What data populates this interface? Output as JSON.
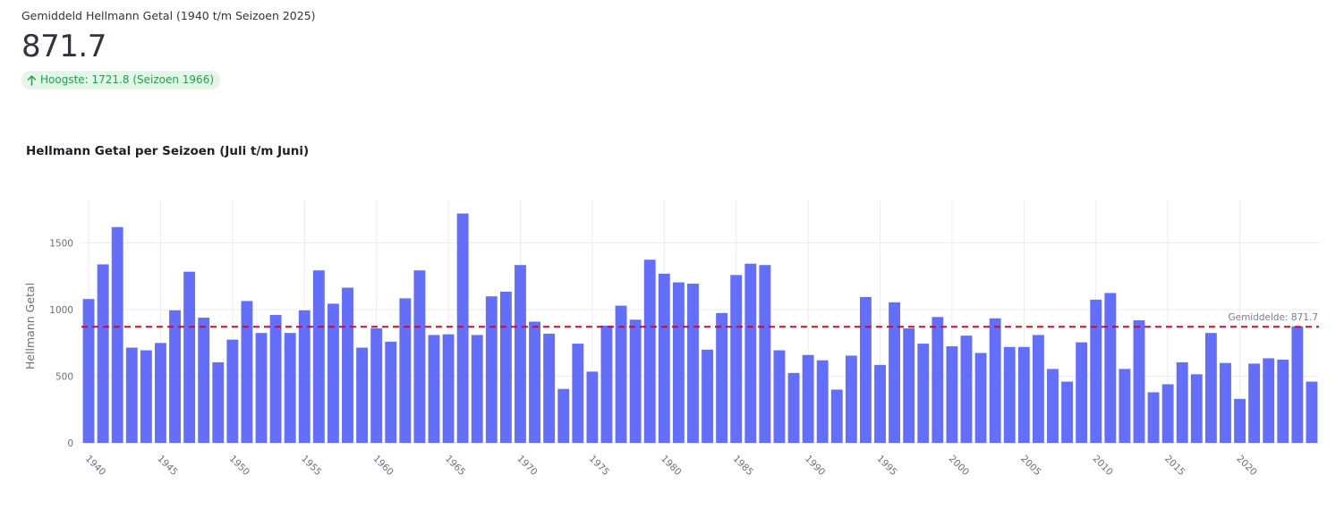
{
  "metric": {
    "label": "Gemiddeld Hellmann Getal (1940 t/m Seizoen 2025)",
    "value": "871.7",
    "delta": "Hoogste: 1721.8 (Seizoen 1966)"
  },
  "colors": {
    "bar": "#636efa",
    "mean_line": "#e8001c",
    "delta_bg": "#e3f6e9",
    "delta_text": "#21a047",
    "grid": "#ebecf0"
  },
  "chart_data": {
    "type": "bar",
    "title": "Hellmann Getal per Seizoen (Juli t/m Juni)",
    "xlabel": "",
    "ylabel": "Hellmann Getal",
    "xlim": [
      1939.5,
      2025.5
    ],
    "ylim": [
      0,
      1820
    ],
    "grid": true,
    "x": [
      1940,
      1941,
      1942,
      1943,
      1944,
      1945,
      1946,
      1947,
      1948,
      1949,
      1950,
      1951,
      1952,
      1953,
      1954,
      1955,
      1956,
      1957,
      1958,
      1959,
      1960,
      1961,
      1962,
      1963,
      1964,
      1965,
      1966,
      1967,
      1968,
      1969,
      1970,
      1971,
      1972,
      1973,
      1974,
      1975,
      1976,
      1977,
      1978,
      1979,
      1980,
      1981,
      1982,
      1983,
      1984,
      1985,
      1986,
      1987,
      1988,
      1989,
      1990,
      1991,
      1992,
      1993,
      1994,
      1995,
      1996,
      1997,
      1998,
      1999,
      2000,
      2001,
      2002,
      2003,
      2004,
      2005,
      2006,
      2007,
      2008,
      2009,
      2010,
      2011,
      2012,
      2013,
      2014,
      2015,
      2016,
      2017,
      2018,
      2019,
      2020,
      2021,
      2022,
      2023,
      2024,
      2025
    ],
    "values": [
      1080,
      1340,
      1620,
      715,
      695,
      750,
      995,
      1285,
      940,
      605,
      775,
      1065,
      825,
      960,
      825,
      995,
      1295,
      1045,
      1165,
      715,
      860,
      760,
      1085,
      1295,
      810,
      815,
      1721.8,
      810,
      1100,
      1135,
      1335,
      910,
      820,
      405,
      745,
      535,
      880,
      1030,
      925,
      1375,
      1270,
      1205,
      1195,
      700,
      975,
      1260,
      1345,
      1335,
      695,
      525,
      660,
      620,
      400,
      655,
      1095,
      585,
      1055,
      860,
      745,
      945,
      725,
      805,
      675,
      935,
      720,
      720,
      810,
      555,
      460,
      755,
      1075,
      1125,
      555,
      920,
      380,
      440,
      605,
      515,
      825,
      600,
      330,
      595,
      635,
      625,
      875,
      460
    ],
    "xticks": [
      1940,
      1945,
      1950,
      1955,
      1960,
      1965,
      1970,
      1975,
      1980,
      1985,
      1990,
      1995,
      2000,
      2005,
      2010,
      2015,
      2020
    ],
    "yticks": [
      0,
      500,
      1000,
      1500
    ],
    "mean": 871.7,
    "mean_label": "Gemiddelde: 871.7"
  }
}
